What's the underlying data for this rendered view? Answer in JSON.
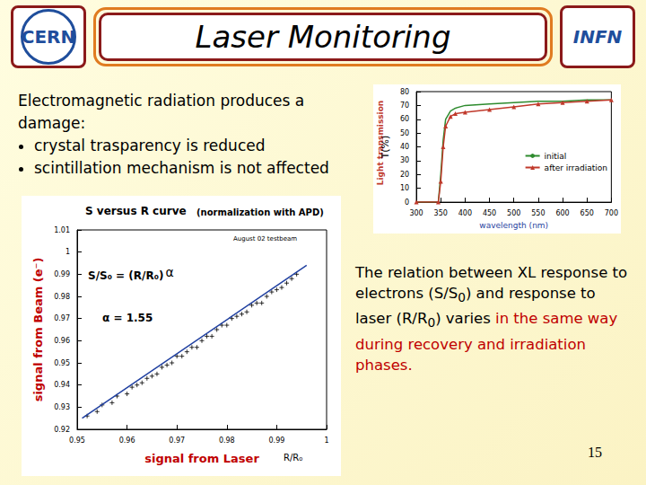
{
  "header": {
    "title": "Laser Monitoring",
    "logos": {
      "left": "CERN",
      "right": "INFN"
    }
  },
  "intro": {
    "text": "Electromagnetic radiation produces a damage:",
    "bullets": [
      "crystal trasparency is reduced",
      "scintillation mechanism is not affected"
    ]
  },
  "right_text": [
    {
      "text": "The relation between XL response to electrons (S/S",
      "style": "normal"
    },
    {
      "text": "0",
      "style": "sub"
    },
    {
      "text": ") and response to laser (R/R",
      "style": "normal"
    },
    {
      "text": "0",
      "style": "sub"
    },
    {
      "text": ") varies ",
      "style": "normal"
    },
    {
      "text": "in the same way during recovery and irradiation phases.",
      "style": "red"
    }
  ],
  "page_number": "15",
  "chart_data": [
    {
      "type": "line",
      "xlabel": "wavelength (nm)",
      "ylabel": "T(%)",
      "annotations": [
        "Light transmission"
      ],
      "xlim": [
        300,
        700
      ],
      "xticks": [
        300,
        350,
        400,
        450,
        500,
        550,
        600,
        650,
        700
      ],
      "ylim": [
        0,
        80
      ],
      "yticks": [
        0,
        10,
        20,
        30,
        40,
        50,
        60,
        70,
        80
      ],
      "grid": false,
      "legend": "right",
      "series": [
        {
          "name": "initial",
          "color": "#2e8b2e",
          "marker": "none",
          "x": [
            300,
            345,
            350,
            355,
            360,
            370,
            380,
            400,
            450,
            500,
            550,
            600,
            650,
            700
          ],
          "values": [
            0,
            0,
            20,
            45,
            60,
            66,
            68,
            70,
            71,
            72,
            73,
            73,
            74,
            74
          ]
        },
        {
          "name": "after irradiation",
          "color": "#c0392b",
          "marker": "triangle",
          "x": [
            300,
            345,
            350,
            355,
            360,
            370,
            380,
            400,
            450,
            500,
            550,
            600,
            650,
            700
          ],
          "values": [
            0,
            0,
            15,
            40,
            55,
            62,
            64,
            65,
            67,
            69,
            71,
            72,
            73,
            74
          ]
        }
      ]
    },
    {
      "type": "scatter",
      "title": "S versus R curve",
      "subtitle": "(normalization with APD)",
      "xlabel": "signal from Laser",
      "ylabel": "signal from Beam (e⁻)",
      "annotations": [
        {
          "text": "S/S₀ = (R/R₀)",
          "sup": "α"
        },
        {
          "text": "α = 1.55"
        },
        {
          "text": "August 02 testbeam"
        },
        {
          "text": "R/R₀"
        }
      ],
      "xlim": [
        0.95,
        1.0
      ],
      "xticks": [
        0.95,
        0.96,
        0.97,
        0.98,
        0.99,
        1
      ],
      "ylim": [
        0.92,
        1.01
      ],
      "yticks": [
        0.92,
        0.93,
        0.94,
        0.95,
        0.96,
        0.97,
        0.98,
        0.99,
        1,
        1.01
      ],
      "grid": false,
      "series": [
        {
          "type": "scatter",
          "color": "#000000",
          "marker": "plus",
          "x": [
            0.952,
            0.954,
            0.955,
            0.957,
            0.958,
            0.96,
            0.961,
            0.962,
            0.963,
            0.964,
            0.965,
            0.966,
            0.967,
            0.968,
            0.969,
            0.97,
            0.971,
            0.972,
            0.973,
            0.974,
            0.975,
            0.976,
            0.977,
            0.978,
            0.979,
            0.98,
            0.981,
            0.982,
            0.983,
            0.984,
            0.985,
            0.986,
            0.987,
            0.988,
            0.989,
            0.99,
            0.991,
            0.992,
            0.993,
            0.994
          ],
          "values": [
            0.926,
            0.928,
            0.931,
            0.932,
            0.935,
            0.936,
            0.939,
            0.94,
            0.941,
            0.943,
            0.944,
            0.945,
            0.948,
            0.949,
            0.95,
            0.953,
            0.953,
            0.955,
            0.957,
            0.957,
            0.96,
            0.962,
            0.962,
            0.965,
            0.967,
            0.967,
            0.97,
            0.971,
            0.972,
            0.973,
            0.976,
            0.977,
            0.977,
            0.98,
            0.982,
            0.983,
            0.984,
            0.986,
            0.988,
            0.99
          ]
        },
        {
          "type": "line",
          "color": "#1f3fa0",
          "marker": "none",
          "x": [
            0.951,
            0.996
          ],
          "values": [
            0.925,
            0.994
          ]
        }
      ]
    }
  ]
}
